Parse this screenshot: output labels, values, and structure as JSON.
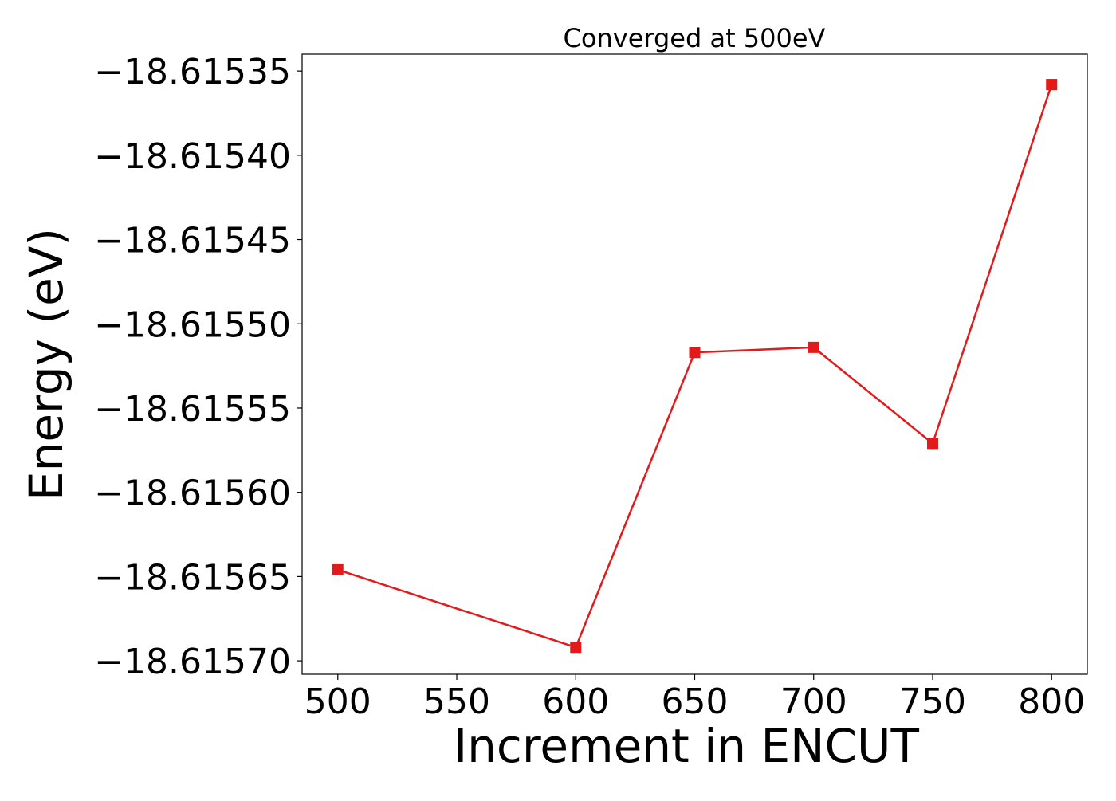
{
  "chart_data": {
    "type": "line",
    "title": "Converged at 500eV",
    "xlabel": "Increment in ENCUT",
    "ylabel": "Energy (eV)",
    "x": [
      500,
      600,
      650,
      700,
      750,
      800
    ],
    "series": [
      {
        "values": [
          -18.615646,
          -18.615692,
          -18.615517,
          -18.615514,
          -18.615571,
          -18.615358
        ],
        "color": "#e31a1c",
        "marker": "square"
      }
    ],
    "xlim": [
      485,
      815
    ],
    "ylim": [
      -18.615708,
      -18.61534
    ],
    "xticks": [
      500,
      550,
      600,
      650,
      700,
      750,
      800
    ],
    "xtick_labels": [
      "500",
      "550",
      "600",
      "650",
      "700",
      "750",
      "800"
    ],
    "yticks": [
      -18.61535,
      -18.6154,
      -18.61545,
      -18.6155,
      -18.61555,
      -18.6156,
      -18.61565,
      -18.6157
    ],
    "ytick_labels": [
      "−18.61535",
      "−18.61540",
      "−18.61545",
      "−18.61550",
      "−18.61555",
      "−18.61560",
      "−18.61565",
      "−18.61570"
    ],
    "grid": false,
    "legend": "none"
  }
}
